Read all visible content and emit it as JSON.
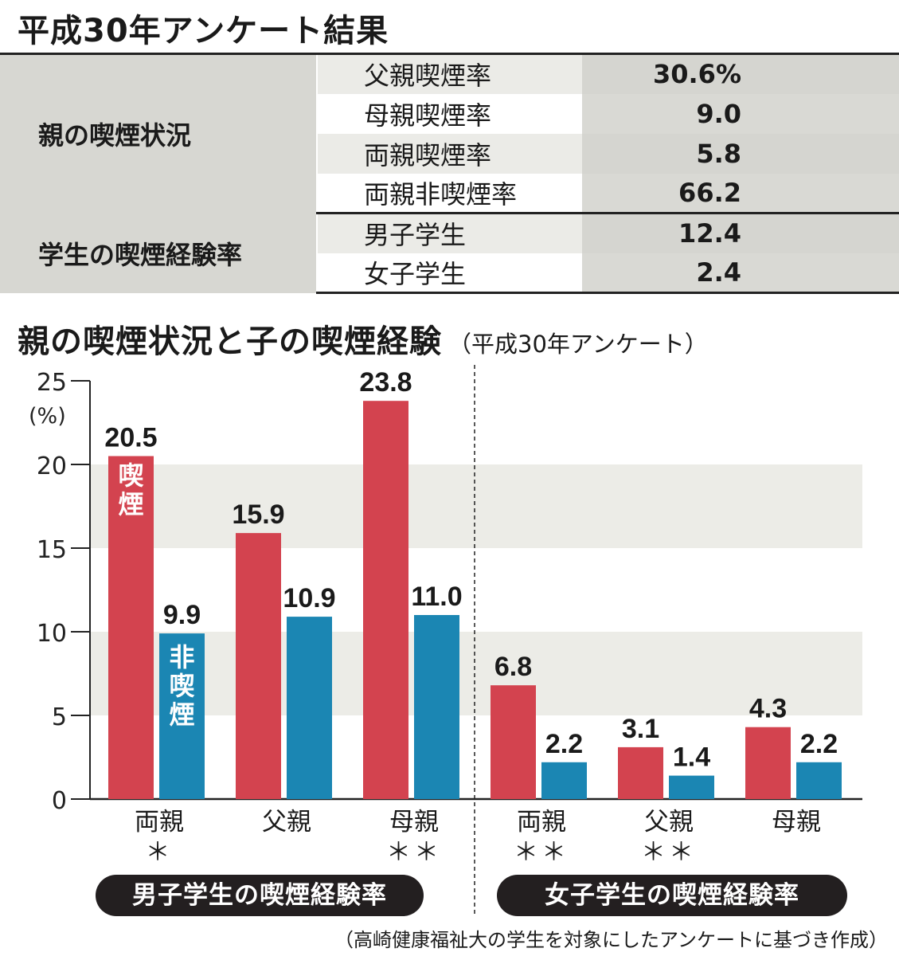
{
  "title": "平成30年アンケート結果",
  "summary_table": {
    "groups": [
      {
        "category": "親の喫煙状況",
        "rows": [
          {
            "label": "父親喫煙率",
            "value": "30.6%"
          },
          {
            "label": "母親喫煙率",
            "value": "9.0"
          },
          {
            "label": "両親喫煙率",
            "value": "5.8"
          },
          {
            "label": "両親非喫煙率",
            "value": "66.2"
          }
        ]
      },
      {
        "category": "学生の喫煙経験率",
        "rows": [
          {
            "label": "男子学生",
            "value": "12.4"
          },
          {
            "label": "女子学生",
            "value": "2.4"
          }
        ]
      }
    ]
  },
  "chart_title": "親の喫煙状況と子の喫煙経験",
  "chart_subtitle": "（平成30年アンケート）",
  "colors": {
    "smoking": "#d3434f",
    "non_smoking": "#1b86b3",
    "band": "#ededе8"
  },
  "chart_data": {
    "type": "bar",
    "title": "親の喫煙状況と子の喫煙経験",
    "ylabel": "(%)",
    "ylim": [
      0,
      25
    ],
    "yticks": [
      0,
      5,
      10,
      15,
      20,
      25
    ],
    "series_labels": {
      "smoking": "喫煙",
      "non_smoking": "非喫煙"
    },
    "groups": [
      {
        "name": "男子学生の喫煙経験率",
        "categories": [
          {
            "label": "両親",
            "mark": "＊",
            "smoking": 20.5,
            "non_smoking": 9.9
          },
          {
            "label": "父親",
            "mark": "",
            "smoking": 15.9,
            "non_smoking": 10.9
          },
          {
            "label": "母親",
            "mark": "＊＊",
            "smoking": 23.8,
            "non_smoking": 11.0
          }
        ]
      },
      {
        "name": "女子学生の喫煙経験率",
        "categories": [
          {
            "label": "両親",
            "mark": "＊＊",
            "smoking": 6.8,
            "non_smoking": 2.2
          },
          {
            "label": "父親",
            "mark": "＊＊",
            "smoking": 3.1,
            "non_smoking": 1.4
          },
          {
            "label": "母親",
            "mark": "",
            "smoking": 4.3,
            "non_smoking": 2.2
          }
        ]
      }
    ]
  },
  "source_note": "（高崎健康福祉大の学生を対象にしたアンケートに基づき作成）"
}
